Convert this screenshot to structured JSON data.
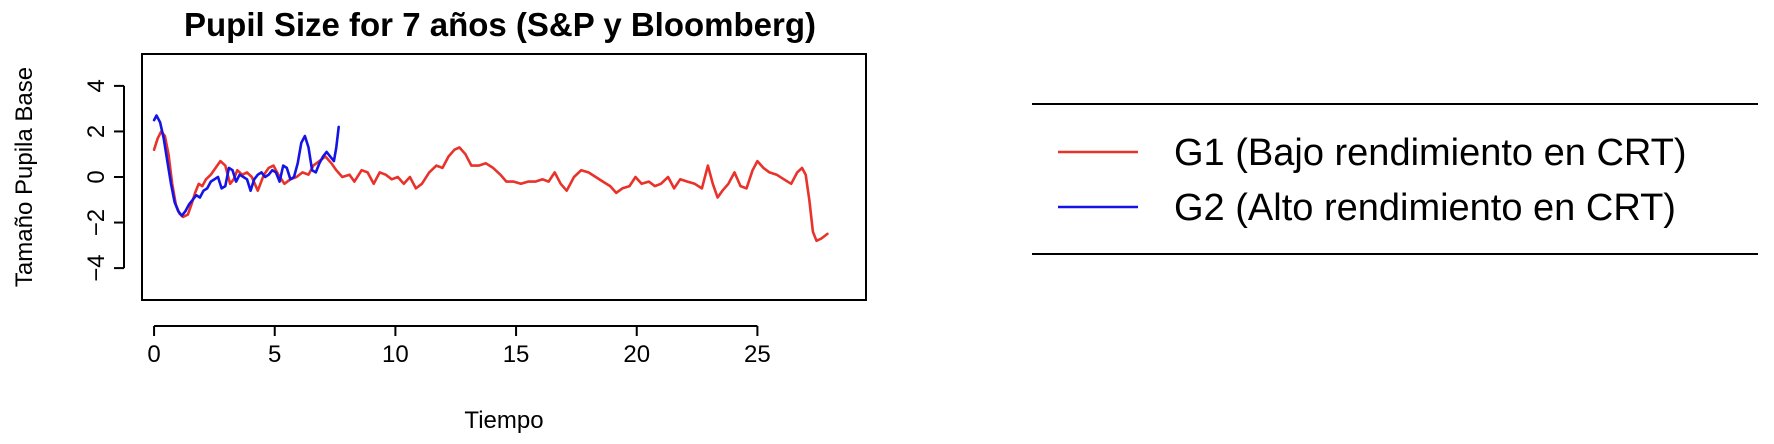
{
  "chart_data": {
    "type": "line",
    "title": "Pupil Size for 7 años (S&P y Bloomberg)",
    "xlabel": "Tiempo",
    "ylabel": "Tamaño Pupila Base",
    "xlim": [
      -0.5,
      29.5
    ],
    "ylim": [
      -5.4,
      5.4
    ],
    "x_ticks": [
      0,
      5,
      10,
      15,
      20,
      25
    ],
    "x_tick_labels": [
      "0",
      "5",
      "10",
      "15",
      "20",
      "25"
    ],
    "y_ticks": [
      -4,
      -2,
      0,
      2,
      4
    ],
    "y_tick_labels": [
      "−4",
      "−2",
      "0",
      "2",
      "4"
    ],
    "grid": false,
    "legend_position": "right",
    "series": [
      {
        "name": "G1 (Bajo rendimiento en CRT)",
        "color": "#e8322a",
        "points": [
          [
            0.0,
            1.2
          ],
          [
            0.15,
            1.7
          ],
          [
            0.3,
            2.0
          ],
          [
            0.45,
            1.8
          ],
          [
            0.6,
            1.0
          ],
          [
            0.75,
            -0.3
          ],
          [
            0.9,
            -1.2
          ],
          [
            1.05,
            -1.6
          ],
          [
            1.2,
            -1.75
          ],
          [
            1.4,
            -1.65
          ],
          [
            1.55,
            -1.2
          ],
          [
            1.7,
            -0.7
          ],
          [
            1.85,
            -0.3
          ],
          [
            2.0,
            -0.4
          ],
          [
            2.15,
            -0.1
          ],
          [
            2.35,
            0.1
          ],
          [
            2.55,
            0.4
          ],
          [
            2.75,
            0.7
          ],
          [
            2.95,
            0.5
          ],
          [
            3.15,
            -0.3
          ],
          [
            3.3,
            -0.1
          ],
          [
            3.45,
            0.3
          ],
          [
            3.65,
            0.1
          ],
          [
            3.85,
            0.2
          ],
          [
            4.05,
            0.0
          ],
          [
            4.3,
            -0.6
          ],
          [
            4.55,
            0.1
          ],
          [
            4.75,
            0.4
          ],
          [
            4.95,
            0.5
          ],
          [
            5.15,
            0.1
          ],
          [
            5.4,
            -0.3
          ],
          [
            5.65,
            -0.1
          ],
          [
            5.9,
            0.0
          ],
          [
            6.15,
            0.2
          ],
          [
            6.4,
            0.1
          ],
          [
            6.6,
            0.5
          ],
          [
            6.85,
            0.7
          ],
          [
            7.1,
            0.9
          ],
          [
            7.35,
            0.6
          ],
          [
            7.55,
            0.3
          ],
          [
            7.8,
            0.0
          ],
          [
            8.1,
            0.1
          ],
          [
            8.3,
            -0.2
          ],
          [
            8.6,
            0.3
          ],
          [
            8.85,
            0.2
          ],
          [
            9.1,
            -0.3
          ],
          [
            9.35,
            0.2
          ],
          [
            9.6,
            0.1
          ],
          [
            9.85,
            -0.1
          ],
          [
            10.1,
            0.0
          ],
          [
            10.35,
            -0.3
          ],
          [
            10.6,
            0.0
          ],
          [
            10.85,
            -0.5
          ],
          [
            11.1,
            -0.3
          ],
          [
            11.4,
            0.2
          ],
          [
            11.7,
            0.5
          ],
          [
            11.95,
            0.4
          ],
          [
            12.2,
            0.9
          ],
          [
            12.45,
            1.2
          ],
          [
            12.65,
            1.3
          ],
          [
            12.9,
            1.0
          ],
          [
            13.15,
            0.5
          ],
          [
            13.45,
            0.5
          ],
          [
            13.75,
            0.6
          ],
          [
            14.05,
            0.4
          ],
          [
            14.35,
            0.1
          ],
          [
            14.6,
            -0.2
          ],
          [
            14.9,
            -0.2
          ],
          [
            15.2,
            -0.3
          ],
          [
            15.5,
            -0.2
          ],
          [
            15.8,
            -0.2
          ],
          [
            16.1,
            -0.1
          ],
          [
            16.35,
            -0.2
          ],
          [
            16.6,
            0.2
          ],
          [
            16.85,
            -0.3
          ],
          [
            17.1,
            -0.6
          ],
          [
            17.4,
            0.0
          ],
          [
            17.7,
            0.3
          ],
          [
            18.0,
            0.2
          ],
          [
            18.3,
            0.0
          ],
          [
            18.6,
            -0.2
          ],
          [
            18.9,
            -0.4
          ],
          [
            19.15,
            -0.7
          ],
          [
            19.4,
            -0.5
          ],
          [
            19.7,
            -0.4
          ],
          [
            19.95,
            0.0
          ],
          [
            20.2,
            -0.3
          ],
          [
            20.5,
            -0.2
          ],
          [
            20.75,
            -0.4
          ],
          [
            21.0,
            -0.3
          ],
          [
            21.3,
            0.0
          ],
          [
            21.55,
            -0.5
          ],
          [
            21.8,
            -0.1
          ],
          [
            22.1,
            -0.2
          ],
          [
            22.4,
            -0.3
          ],
          [
            22.7,
            -0.5
          ],
          [
            22.95,
            0.5
          ],
          [
            23.15,
            -0.3
          ],
          [
            23.35,
            -0.9
          ],
          [
            23.55,
            -0.6
          ],
          [
            23.8,
            -0.3
          ],
          [
            24.05,
            0.2
          ],
          [
            24.3,
            -0.4
          ],
          [
            24.55,
            -0.5
          ],
          [
            24.8,
            0.3
          ],
          [
            25.0,
            0.7
          ],
          [
            25.25,
            0.4
          ],
          [
            25.5,
            0.2
          ],
          [
            25.8,
            0.1
          ],
          [
            26.1,
            -0.1
          ],
          [
            26.4,
            -0.3
          ],
          [
            26.65,
            0.2
          ],
          [
            26.85,
            0.4
          ],
          [
            27.0,
            0.1
          ],
          [
            27.15,
            -1.0
          ],
          [
            27.3,
            -2.4
          ],
          [
            27.45,
            -2.8
          ],
          [
            27.65,
            -2.7
          ],
          [
            27.9,
            -2.5
          ]
        ]
      },
      {
        "name": "G2 (Alto rendimiento en CRT)",
        "color": "#1414e6",
        "points": [
          [
            0.0,
            2.5
          ],
          [
            0.1,
            2.7
          ],
          [
            0.25,
            2.4
          ],
          [
            0.4,
            1.7
          ],
          [
            0.55,
            0.7
          ],
          [
            0.7,
            -0.3
          ],
          [
            0.85,
            -1.1
          ],
          [
            1.0,
            -1.5
          ],
          [
            1.15,
            -1.7
          ],
          [
            1.3,
            -1.5
          ],
          [
            1.45,
            -1.2
          ],
          [
            1.6,
            -1.0
          ],
          [
            1.75,
            -0.8
          ],
          [
            1.9,
            -0.9
          ],
          [
            2.05,
            -0.6
          ],
          [
            2.2,
            -0.5
          ],
          [
            2.35,
            -0.2
          ],
          [
            2.5,
            -0.1
          ],
          [
            2.65,
            0.0
          ],
          [
            2.8,
            -0.5
          ],
          [
            2.95,
            -0.4
          ],
          [
            3.1,
            0.4
          ],
          [
            3.25,
            0.3
          ],
          [
            3.4,
            -0.2
          ],
          [
            3.55,
            0.1
          ],
          [
            3.7,
            0.0
          ],
          [
            3.85,
            -0.1
          ],
          [
            4.0,
            -0.6
          ],
          [
            4.15,
            -0.1
          ],
          [
            4.3,
            0.1
          ],
          [
            4.45,
            0.2
          ],
          [
            4.6,
            0.0
          ],
          [
            4.75,
            0.1
          ],
          [
            4.9,
            0.3
          ],
          [
            5.05,
            0.2
          ],
          [
            5.2,
            -0.2
          ],
          [
            5.35,
            0.5
          ],
          [
            5.5,
            0.4
          ],
          [
            5.65,
            -0.1
          ],
          [
            5.8,
            0.0
          ],
          [
            5.95,
            0.6
          ],
          [
            6.1,
            1.5
          ],
          [
            6.25,
            1.8
          ],
          [
            6.4,
            1.3
          ],
          [
            6.55,
            0.3
          ],
          [
            6.7,
            0.2
          ],
          [
            6.85,
            0.6
          ],
          [
            7.0,
            0.9
          ],
          [
            7.15,
            1.1
          ],
          [
            7.3,
            0.9
          ],
          [
            7.45,
            0.7
          ],
          [
            7.55,
            1.3
          ],
          [
            7.65,
            2.2
          ]
        ]
      }
    ]
  }
}
